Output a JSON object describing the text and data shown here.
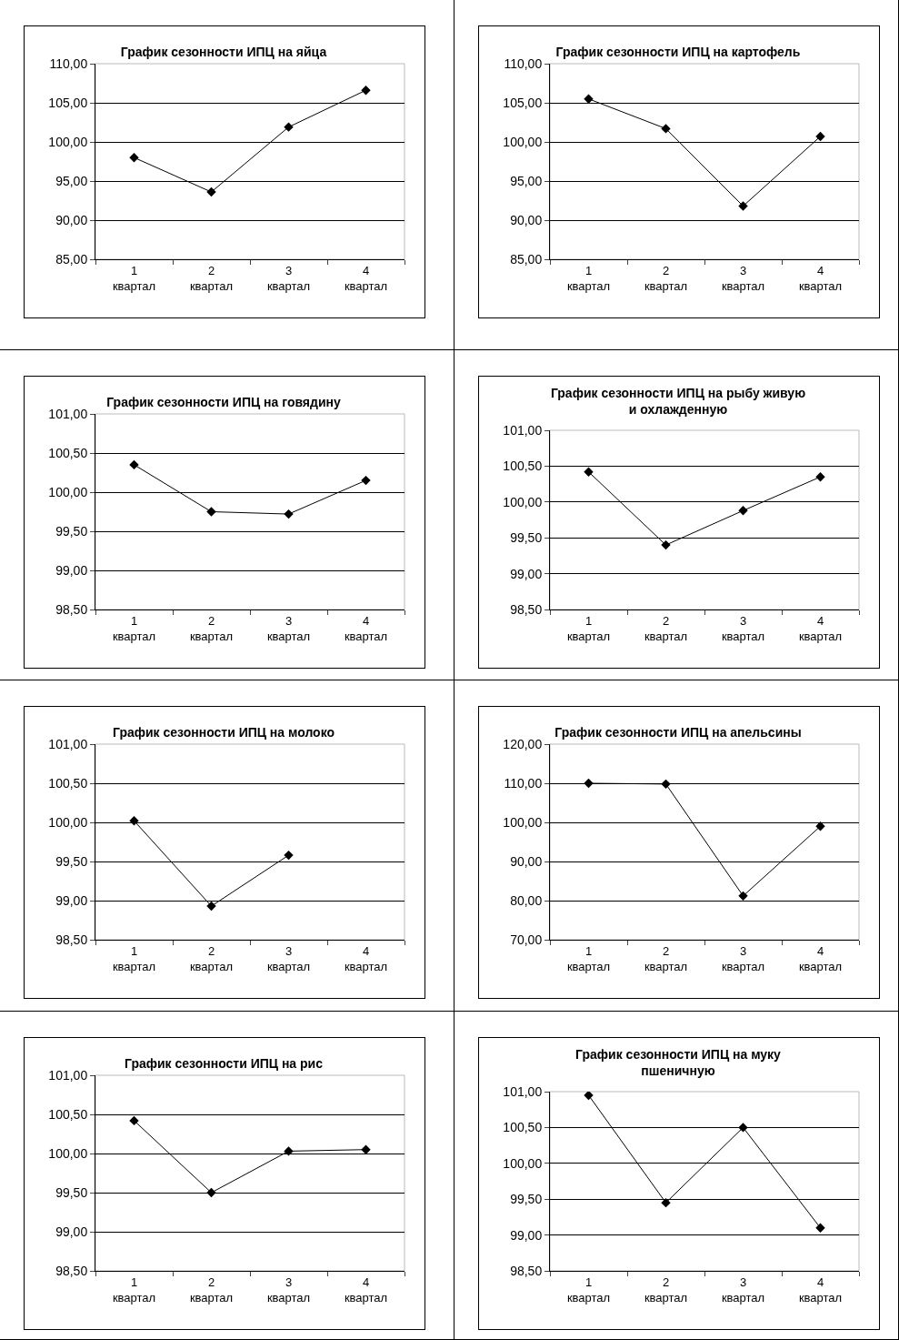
{
  "chart_data": [
    {
      "type": "line",
      "title": "График сезонности ИПЦ на яйца",
      "categories": [
        "1\nквартал",
        "2\nквартал",
        "3\nквартал",
        "4\nквартал"
      ],
      "values": [
        98.0,
        93.6,
        101.9,
        106.6
      ],
      "color": "#000000",
      "marker": "diamond",
      "grid": "y",
      "ylim": [
        85,
        110
      ],
      "yticks": [
        {
          "value": 85,
          "label": "85,00"
        },
        {
          "value": 90,
          "label": "90,00"
        },
        {
          "value": 95,
          "label": "95,00"
        },
        {
          "value": 100,
          "label": "100,00"
        },
        {
          "value": 105,
          "label": "105,00"
        },
        {
          "value": 110,
          "label": "110,00"
        }
      ]
    },
    {
      "type": "line",
      "title": "График сезонности ИПЦ на картофель",
      "categories": [
        "1\nквартал",
        "2\nквартал",
        "3\nквартал",
        "4\nквартал"
      ],
      "values": [
        105.5,
        101.7,
        91.8,
        100.7
      ],
      "color": "#000000",
      "marker": "diamond",
      "grid": "y",
      "ylim": [
        85,
        110
      ],
      "yticks": [
        {
          "value": 85,
          "label": "85,00"
        },
        {
          "value": 90,
          "label": "90,00"
        },
        {
          "value": 95,
          "label": "95,00"
        },
        {
          "value": 100,
          "label": "100,00"
        },
        {
          "value": 105,
          "label": "105,00"
        },
        {
          "value": 110,
          "label": "110,00"
        }
      ]
    },
    {
      "type": "line",
      "title": "График сезонности ИПЦ на говядину",
      "categories": [
        "1\nквартал",
        "2\nквартал",
        "3\nквартал",
        "4\nквартал"
      ],
      "values": [
        100.35,
        99.75,
        99.72,
        100.15
      ],
      "color": "#000000",
      "marker": "diamond",
      "grid": "y",
      "ylim": [
        98.5,
        101
      ],
      "yticks": [
        {
          "value": 98.5,
          "label": "98,50"
        },
        {
          "value": 99,
          "label": "99,00"
        },
        {
          "value": 99.5,
          "label": "99,50"
        },
        {
          "value": 100,
          "label": "100,00"
        },
        {
          "value": 100.5,
          "label": "100,50"
        },
        {
          "value": 101,
          "label": "101,00"
        }
      ]
    },
    {
      "type": "line",
      "title": "График сезонности ИПЦ на рыбу живую и охлажденную",
      "categories": [
        "1\nквартал",
        "2\nквартал",
        "3\nквартал",
        "4\nквартал"
      ],
      "values": [
        100.42,
        99.4,
        99.88,
        100.35
      ],
      "color": "#000000",
      "marker": "diamond",
      "grid": "y",
      "ylim": [
        98.5,
        101
      ],
      "yticks": [
        {
          "value": 98.5,
          "label": "98,50"
        },
        {
          "value": 99,
          "label": "99,00"
        },
        {
          "value": 99.5,
          "label": "99,50"
        },
        {
          "value": 100,
          "label": "100,00"
        },
        {
          "value": 100.5,
          "label": "100,50"
        },
        {
          "value": 101,
          "label": "101,00"
        }
      ]
    },
    {
      "type": "line",
      "title": "График сезонности ИПЦ на молоко",
      "categories": [
        "1\nквартал",
        "2\nквартал",
        "3\nквартал",
        "4\nквартал"
      ],
      "values": [
        100.02,
        98.93,
        99.58,
        null
      ],
      "color": "#000000",
      "marker": "diamond",
      "grid": "y",
      "ylim": [
        98.5,
        101
      ],
      "yticks": [
        {
          "value": 98.5,
          "label": "98,50"
        },
        {
          "value": 99,
          "label": "99,00"
        },
        {
          "value": 99.5,
          "label": "99,50"
        },
        {
          "value": 100,
          "label": "100,00"
        },
        {
          "value": 100.5,
          "label": "100,50"
        },
        {
          "value": 101,
          "label": "101,00"
        }
      ]
    },
    {
      "type": "line",
      "title": "График сезонности ИПЦ на апельсины",
      "categories": [
        "1\nквартал",
        "2\nквартал",
        "3\nквартал",
        "4\nквартал"
      ],
      "values": [
        110.0,
        109.8,
        81.2,
        99.0
      ],
      "color": "#000000",
      "marker": "diamond",
      "grid": "y",
      "ylim": [
        70,
        120
      ],
      "yticks": [
        {
          "value": 70,
          "label": "70,00"
        },
        {
          "value": 80,
          "label": "80,00"
        },
        {
          "value": 90,
          "label": "90,00"
        },
        {
          "value": 100,
          "label": "100,00"
        },
        {
          "value": 110,
          "label": "110,00"
        },
        {
          "value": 120,
          "label": "120,00"
        }
      ]
    },
    {
      "type": "line",
      "title": "График сезонности ИПЦ на рис",
      "categories": [
        "1\nквартал",
        "2\nквартал",
        "3\nквартал",
        "4\nквартал"
      ],
      "values": [
        100.42,
        99.5,
        100.03,
        100.05
      ],
      "color": "#000000",
      "marker": "diamond",
      "grid": "y",
      "ylim": [
        98.5,
        101
      ],
      "yticks": [
        {
          "value": 98.5,
          "label": "98,50"
        },
        {
          "value": 99,
          "label": "99,00"
        },
        {
          "value": 99.5,
          "label": "99,50"
        },
        {
          "value": 100,
          "label": "100,00"
        },
        {
          "value": 100.5,
          "label": "100,50"
        },
        {
          "value": 101,
          "label": "101,00"
        }
      ]
    },
    {
      "type": "line",
      "title": "График сезонности ИПЦ на муку пшеничную",
      "categories": [
        "1\nквартал",
        "2\nквартал",
        "3\nквартал",
        "4\nквартал"
      ],
      "values": [
        100.95,
        99.45,
        100.5,
        99.1
      ],
      "color": "#000000",
      "marker": "diamond",
      "grid": "y",
      "ylim": [
        98.5,
        101
      ],
      "yticks": [
        {
          "value": 98.5,
          "label": "98,50"
        },
        {
          "value": 99,
          "label": "99,00"
        },
        {
          "value": 99.5,
          "label": "99,50"
        },
        {
          "value": 100,
          "label": "100,00"
        },
        {
          "value": 100.5,
          "label": "100,50"
        },
        {
          "value": 101,
          "label": "101,00"
        }
      ]
    }
  ]
}
